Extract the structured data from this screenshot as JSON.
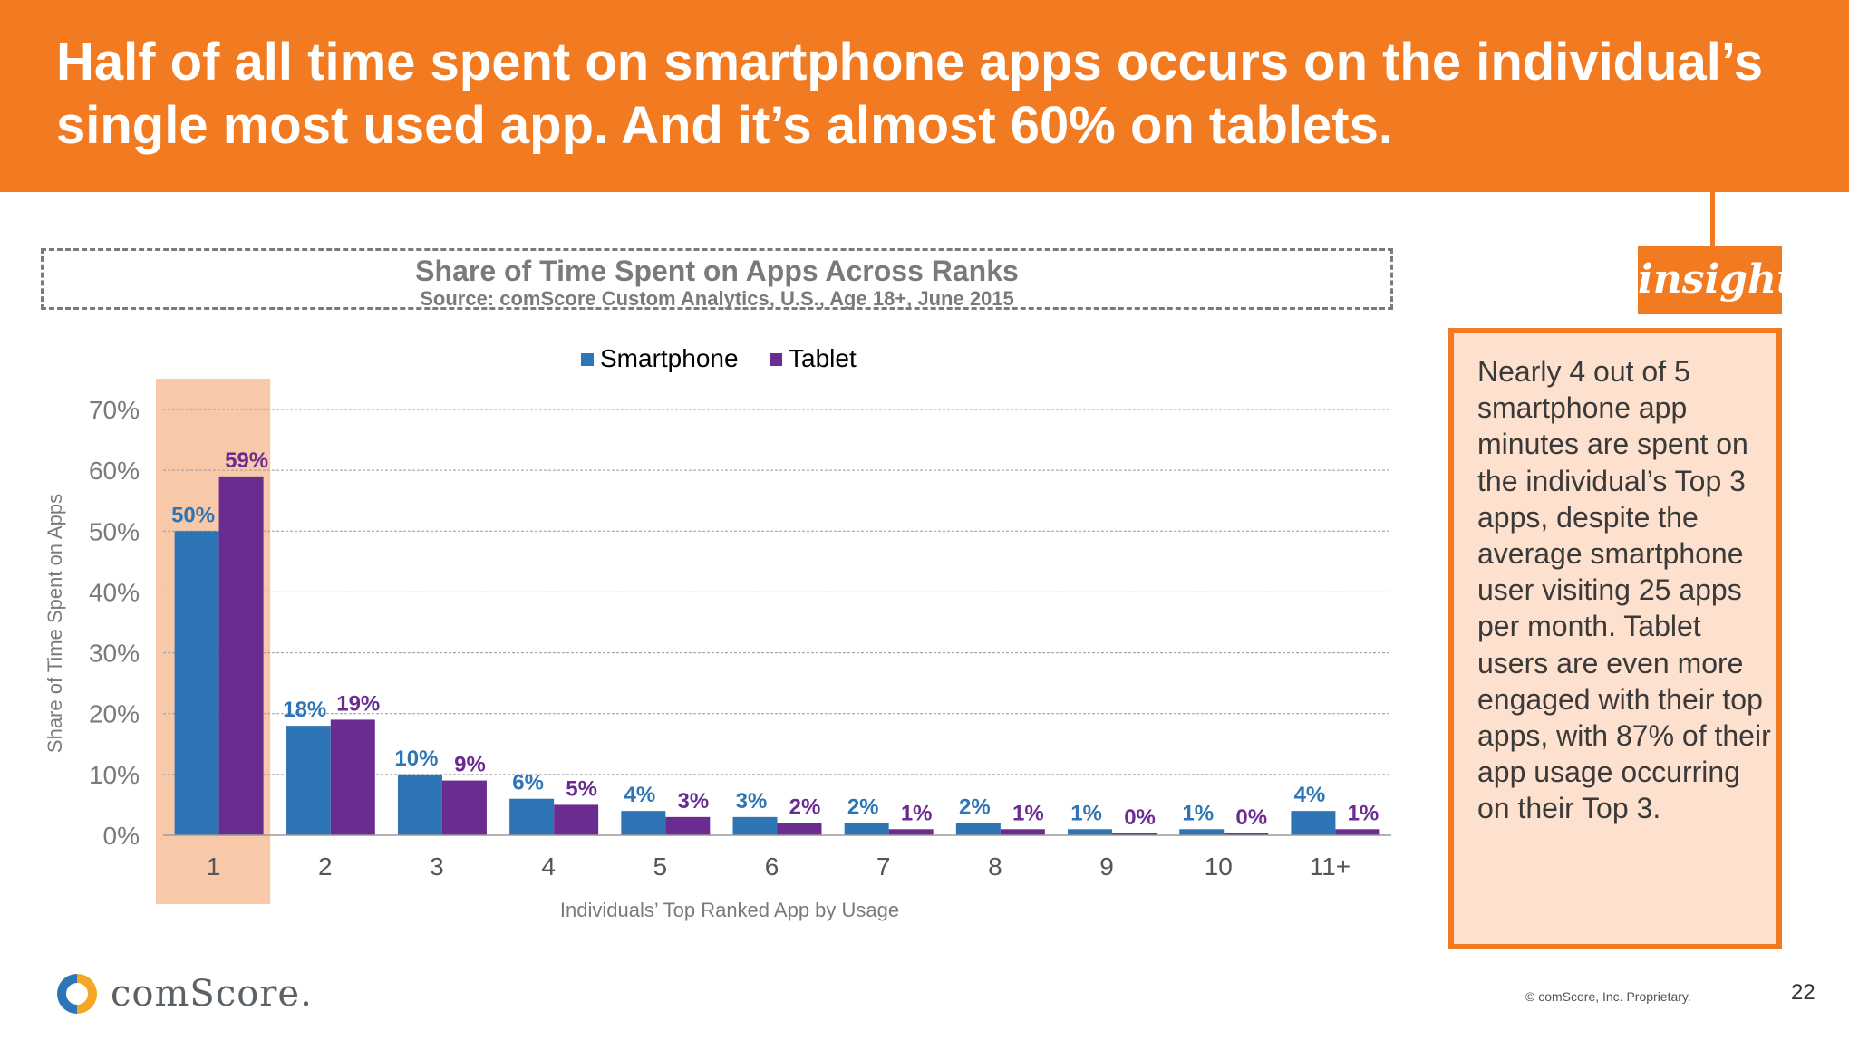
{
  "slide": {
    "title_line1": "Half of all time spent on smartphone apps occurs on the individual’s",
    "title_line2": "single most used app. And it’s almost 60% on tablets.",
    "page_number": "22",
    "copyright": "© comScore, Inc. Proprietary.",
    "logo_text": "comScore."
  },
  "insight": {
    "label": "insight",
    "text": "Nearly 4 out of 5 smartphone app minutes are spent on the individual’s Top 3 apps, despite the average smartphone user visiting 25 apps per month. Tablet users are even more engaged with their top apps, with 87% of their app usage occurring on their Top 3."
  },
  "colors": {
    "accent": "#f27b22",
    "smartphone": "#2e75b6",
    "tablet": "#6a2c91",
    "highlight": "#f8c9a8",
    "insight_bg": "#fde0cd"
  },
  "chart_data": {
    "type": "bar",
    "title": "Share of Time Spent on Apps Across Ranks",
    "subtitle": "Source: comScore Custom Analytics, U.S., Age 18+, June 2015",
    "xlabel": "Individuals’ Top Ranked App by Usage",
    "ylabel": "Share of Time Spent on Apps",
    "ylim": [
      0,
      70
    ],
    "yticks": [
      "0%",
      "10%",
      "20%",
      "30%",
      "40%",
      "50%",
      "60%",
      "70%"
    ],
    "grid": true,
    "legend_position": "top-center",
    "highlight_category": "1",
    "categories": [
      "1",
      "2",
      "3",
      "4",
      "5",
      "6",
      "7",
      "8",
      "9",
      "10",
      "11+"
    ],
    "series": [
      {
        "name": "Smartphone",
        "color": "#2e75b6",
        "values": [
          50,
          18,
          10,
          6,
          4,
          3,
          2,
          2,
          1,
          1,
          4
        ],
        "labels": [
          "50%",
          "18%",
          "10%",
          "6%",
          "4%",
          "3%",
          "2%",
          "2%",
          "1%",
          "1%",
          "4%"
        ]
      },
      {
        "name": "Tablet",
        "color": "#6a2c91",
        "values": [
          59,
          19,
          9,
          5,
          3,
          2,
          1,
          1,
          0,
          0,
          1
        ],
        "labels": [
          "59%",
          "19%",
          "9%",
          "5%",
          "3%",
          "2%",
          "1%",
          "1%",
          "0%",
          "0%",
          "1%"
        ]
      }
    ]
  }
}
